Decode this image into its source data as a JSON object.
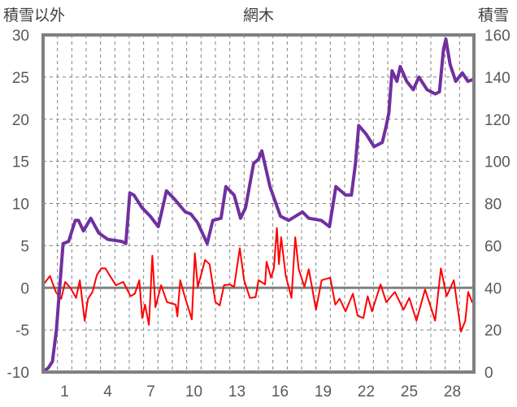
{
  "chart_data": {
    "type": "line",
    "title": "網木",
    "ylabel_left": "積雪以外",
    "ylabel_right": "積雪",
    "xlim": [
      -0.5,
      29.5
    ],
    "ylim_left": [
      -10,
      30
    ],
    "ylim_right": [
      0,
      160
    ],
    "yticks_left": [
      -10,
      -5,
      0,
      5,
      10,
      15,
      20,
      25,
      30
    ],
    "yticks_right": [
      0,
      20,
      40,
      60,
      80,
      100,
      120,
      140,
      160
    ],
    "xticks": [
      1,
      4,
      7,
      10,
      13,
      16,
      19,
      22,
      25,
      28
    ],
    "grid": true,
    "series": [
      {
        "name": "積雪",
        "axis": "right",
        "color": "#7030A0",
        "points": [
          [
            -0.53,
            0
          ],
          [
            -0.13,
            2
          ],
          [
            0.15,
            5
          ],
          [
            0.43,
            20
          ],
          [
            0.89,
            61
          ],
          [
            1.28,
            62
          ],
          [
            1.74,
            72
          ],
          [
            1.97,
            72
          ],
          [
            2.31,
            67
          ],
          [
            2.82,
            73
          ],
          [
            3.38,
            66
          ],
          [
            4.0,
            63
          ],
          [
            4.97,
            62
          ],
          [
            5.26,
            61
          ],
          [
            5.54,
            85
          ],
          [
            5.82,
            84
          ],
          [
            6.39,
            78
          ],
          [
            6.96,
            74
          ],
          [
            7.52,
            69
          ],
          [
            8.09,
            86
          ],
          [
            8.66,
            82
          ],
          [
            9.4,
            76
          ],
          [
            9.79,
            75
          ],
          [
            10.25,
            71
          ],
          [
            10.93,
            61
          ],
          [
            11.32,
            72
          ],
          [
            11.89,
            73
          ],
          [
            12.23,
            88
          ],
          [
            12.8,
            84
          ],
          [
            13.25,
            73
          ],
          [
            13.6,
            78
          ],
          [
            14.16,
            99
          ],
          [
            14.5,
            101
          ],
          [
            14.73,
            105
          ],
          [
            15.3,
            88
          ],
          [
            16.03,
            74
          ],
          [
            16.6,
            72
          ],
          [
            17.56,
            76
          ],
          [
            18.0,
            73
          ],
          [
            18.87,
            72
          ],
          [
            19.44,
            69
          ],
          [
            19.89,
            88
          ],
          [
            20.57,
            84
          ],
          [
            20.97,
            84
          ],
          [
            21.25,
            99
          ],
          [
            21.48,
            117
          ],
          [
            21.99,
            113
          ],
          [
            22.55,
            107
          ],
          [
            23.12,
            109
          ],
          [
            23.4,
            117
          ],
          [
            23.58,
            123
          ],
          [
            23.8,
            143
          ],
          [
            24.14,
            138
          ],
          [
            24.37,
            145
          ],
          [
            24.82,
            138
          ],
          [
            25.28,
            134
          ],
          [
            25.67,
            140
          ],
          [
            26.24,
            134
          ],
          [
            26.81,
            132
          ],
          [
            27.1,
            133
          ],
          [
            27.38,
            153
          ],
          [
            27.55,
            158
          ],
          [
            27.84,
            146
          ],
          [
            28.23,
            138
          ],
          [
            28.69,
            142
          ],
          [
            29.08,
            138
          ],
          [
            29.5,
            139
          ]
        ]
      },
      {
        "name": "積雪以外",
        "axis": "left",
        "color": "#FF0000",
        "points": [
          [
            -0.47,
            0.4
          ],
          [
            -0.02,
            1.4
          ],
          [
            0.39,
            -0.5
          ],
          [
            0.76,
            -1.3
          ],
          [
            1.04,
            0.7
          ],
          [
            1.4,
            0
          ],
          [
            1.8,
            -1.2
          ],
          [
            2.06,
            0.9
          ],
          [
            2.39,
            -3.9
          ],
          [
            2.63,
            -1.3
          ],
          [
            2.94,
            -0.5
          ],
          [
            3.24,
            1.5
          ],
          [
            3.55,
            2.3
          ],
          [
            3.85,
            2.3
          ],
          [
            4.16,
            1.4
          ],
          [
            4.57,
            0.3
          ],
          [
            5.08,
            0.7
          ],
          [
            5.59,
            -1.0
          ],
          [
            5.89,
            -0.7
          ],
          [
            6.2,
            0.9
          ],
          [
            6.4,
            -3.6
          ],
          [
            6.6,
            -2.0
          ],
          [
            6.87,
            -4.4
          ],
          [
            7.11,
            3.8
          ],
          [
            7.32,
            -2.3
          ],
          [
            7.72,
            0.3
          ],
          [
            8.13,
            -1.7
          ],
          [
            8.74,
            -2.0
          ],
          [
            8.85,
            -3.4
          ],
          [
            9.05,
            0.9
          ],
          [
            9.36,
            -1.0
          ],
          [
            9.86,
            -3.75
          ],
          [
            10.07,
            4.1
          ],
          [
            10.27,
            0.1
          ],
          [
            10.78,
            3.3
          ],
          [
            11.09,
            2.8
          ],
          [
            11.5,
            -1.7
          ],
          [
            11.8,
            -2.1
          ],
          [
            12.1,
            0.3
          ],
          [
            12.5,
            0.4
          ],
          [
            12.8,
            0.1
          ],
          [
            13.2,
            4.7
          ],
          [
            13.5,
            0.9
          ],
          [
            13.9,
            -1.2
          ],
          [
            14.3,
            -1.1
          ],
          [
            14.5,
            0.9
          ],
          [
            14.96,
            0.4
          ],
          [
            15.06,
            3.1
          ],
          [
            15.37,
            1.2
          ],
          [
            15.57,
            2.3
          ],
          [
            15.78,
            7.1
          ],
          [
            15.92,
            2.8
          ],
          [
            16.08,
            6.0
          ],
          [
            16.39,
            1.5
          ],
          [
            16.8,
            -1.2
          ],
          [
            17.06,
            6.0
          ],
          [
            17.3,
            2.2
          ],
          [
            17.7,
            0.1
          ],
          [
            18.0,
            2.2
          ],
          [
            18.2,
            0.3
          ],
          [
            18.5,
            -2.6
          ],
          [
            18.9,
            0.9
          ],
          [
            19.5,
            1.2
          ],
          [
            19.85,
            -2.0
          ],
          [
            20.15,
            -1.3
          ],
          [
            20.56,
            -2.8
          ],
          [
            21.07,
            -0.7
          ],
          [
            21.4,
            -3.3
          ],
          [
            21.8,
            -3.6
          ],
          [
            22.1,
            -1.0
          ],
          [
            22.4,
            -2.8
          ],
          [
            23.0,
            0.4
          ],
          [
            23.4,
            -1.7
          ],
          [
            24.0,
            -0.5
          ],
          [
            24.6,
            -2.6
          ],
          [
            25.0,
            -1.2
          ],
          [
            25.5,
            -3.9
          ],
          [
            26.1,
            -0.2
          ],
          [
            26.8,
            -3.9
          ],
          [
            27.2,
            2.3
          ],
          [
            27.6,
            -1.0
          ],
          [
            28.1,
            0.9
          ],
          [
            28.6,
            -5.2
          ],
          [
            28.9,
            -3.9
          ],
          [
            29.1,
            -0.5
          ],
          [
            29.4,
            -1.8
          ]
        ]
      }
    ]
  }
}
